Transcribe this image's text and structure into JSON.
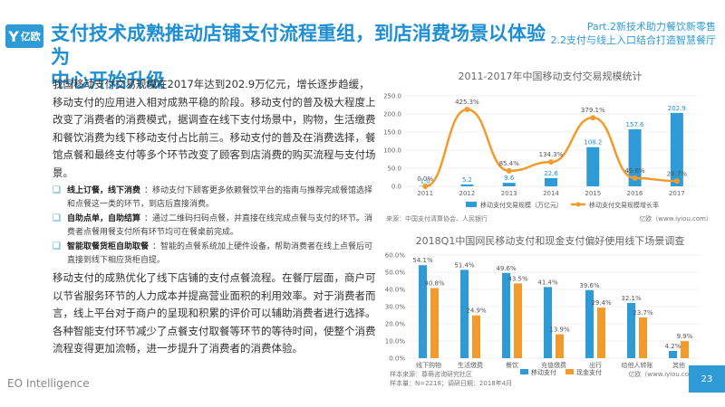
{
  "header": {
    "logo_text": "亿欧",
    "title_line1": "支付技术成熟推动店铺支付流程重组，到店消费场景以体验为",
    "title_line2": "中心开始升级",
    "part_line1": "Part.2新技术助力餐饮新零售",
    "part_line2": "2.2支付与线上入口结合打造智慧餐厅"
  },
  "body": {
    "para1": "我国移动支付交易规模在2017年达到202.9万亿元，增长逐步趋缓，移动支付的应用进入相对成熟平稳的阶段。移动支付的普及极大程度上改变了消费者的消费模式，据调查在线下支付场景中，购物，生活缴费和餐饮消费为线下移动支付占比前三。移动支付的普及在消费选择，餐馆点餐和最终支付等多个环节改变了顾客到店消费的购买流程与支付场景。",
    "bullets": [
      {
        "head": "线上订餐，线下消费",
        "text": "：移动支付下顾客更多依赖餐饮平台的指南与推荐完成餐馆选择和点餐这一类的环节，到店后直接消费。"
      },
      {
        "head": "自助点单，自助结算",
        "text": "：通过二维码扫码点餐，并直接在线完成点餐与支付的环节。消费者点餐用餐支付所有环节均可在餐桌前完成。"
      },
      {
        "head": "智能取餐货柜自助取餐",
        "text": "：智能的点餐系统加上硬件设备，帮助消费者在线上点餐后可直接到线下相应货柜自提。"
      }
    ],
    "para2": "移动支付的成熟优化了线下店铺的支付点餐流程。在餐厅层面，商户可以节省服务环节的人力成本并提高营业面积的利用效率。对于消费者而言，线上平台对于商户的呈现和积累的评价可以辅助消费者进行选择。各种智能支付环节减少了点餐支付取餐等环节的等待时间，使整个消费流程变得更加流畅，进一步提升了消费者的消费体验。"
  },
  "chart_data": [
    {
      "type": "bar",
      "title": "2011-2017年中国移动支付交易规模统计",
      "categories": [
        "2011",
        "2012",
        "2013",
        "2014",
        "2015",
        "2016",
        "2017"
      ],
      "series": [
        {
          "name": "移动支付交易规模（万亿元）",
          "type": "bar",
          "values": [
            1.0,
            5.2,
            9.6,
            22.6,
            108.2,
            157.6,
            202.9
          ],
          "labels": [
            "1.0",
            "5.2",
            "9.6",
            "22.6",
            "108.2",
            "157.6",
            "202.9"
          ]
        },
        {
          "name": "移动支付交易规模增长率",
          "type": "line",
          "values": [
            0.0,
            425.3,
            85.4,
            134.3,
            379.1,
            45.6,
            28.7
          ],
          "labels": [
            "0.0%",
            "425.3%",
            "85.4%",
            "134.3%",
            "379.1%",
            "45.6%",
            "28.7%"
          ]
        }
      ],
      "y_ticks": [
        "250.0",
        "200.0",
        "150.0",
        "100.0",
        "50.0",
        "0.0"
      ],
      "ylim": [
        0,
        250
      ],
      "source": "来源：中国支付清算协会、人民银行",
      "watermark": "亿欧（www.iyiou.com）",
      "colors": {
        "bar": "#2e9bd6",
        "line": "#f39a2c"
      }
    },
    {
      "type": "bar",
      "title": "2018Q1中国网民移动支付和现金支付偏好使用线下场景调查",
      "categories": [
        "线下购物",
        "生活缴费",
        "餐饮",
        "充值缴费",
        "出行",
        "给他人转账",
        "其他"
      ],
      "series": [
        {
          "name": "移动支付",
          "values": [
            54.1,
            51.4,
            49.6,
            41.4,
            39.6,
            32.1,
            4.2
          ],
          "labels": [
            "54.1%",
            "51.4%",
            "49.6%",
            "41.4%",
            "39.6%",
            "32.1%",
            "4.2%"
          ]
        },
        {
          "name": "现金支付",
          "values": [
            40.8,
            24.9,
            43.5,
            13.9,
            29.4,
            23.7,
            9.9
          ],
          "labels": [
            "40.8%",
            "24.9%",
            "43.5%",
            "13.9%",
            "29.4%",
            "23.7%",
            "9.9%"
          ]
        }
      ],
      "y_ticks": [
        "60.0%",
        "50.0%",
        "40.0%",
        "30.0%",
        "20.0%",
        "10.0%",
        "0.0%"
      ],
      "ylim": [
        0,
        60
      ],
      "source_line1": "样本来源：尊萌咨询研究社区",
      "source_line2": "样本量：N=2218；调研日期：2018年4月",
      "watermark": "亿欧（www.iyiou.com）",
      "colors": {
        "mobile": "#2e9bd6",
        "cash": "#f39a2c"
      }
    }
  ],
  "footer": {
    "brand": "EO Intelligence",
    "page": "23"
  }
}
